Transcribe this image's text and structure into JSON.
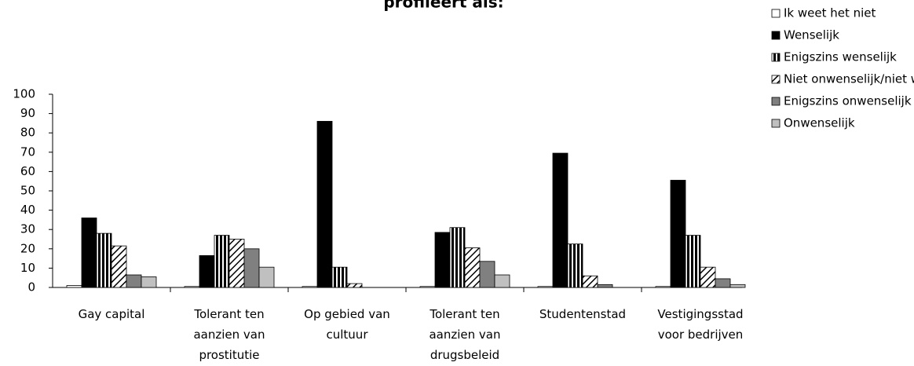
{
  "chart_data": {
    "type": "bar",
    "title": "profileert als:",
    "categories": [
      "Gay capital",
      "Tolerant ten aanzien van prostitutie",
      "Op gebied van cultuur",
      "Tolerant ten aanzien van drugsbeleid",
      "Studentenstad",
      "Vestigingsstad voor bedrijven"
    ],
    "series": [
      {
        "name": "Ik weet het niet",
        "color": "#ffffff",
        "pattern": "solid",
        "values": [
          1,
          0.5,
          0.5,
          0.5,
          0.5,
          0.5
        ]
      },
      {
        "name": "Wenselijk",
        "color": "#000000",
        "pattern": "solid",
        "values": [
          36,
          16.5,
          86,
          28.5,
          69.5,
          55.5
        ]
      },
      {
        "name": "Enigszins wenselijk",
        "color": "#000000",
        "pattern": "vertical-stripes",
        "values": [
          28,
          27,
          10.5,
          31,
          22.5,
          27
        ]
      },
      {
        "name": "Niet onwenselijk/niet wenselijk",
        "color": "#555555",
        "pattern": "diagonal-hatch",
        "values": [
          21.5,
          25,
          2,
          20.5,
          6,
          10.5
        ]
      },
      {
        "name": "Enigszins onwenselijk",
        "color": "#808080",
        "pattern": "solid",
        "values": [
          6.5,
          20,
          0,
          13.5,
          1.5,
          4.5
        ]
      },
      {
        "name": "Onwenselijk",
        "color": "#c0c0c0",
        "pattern": "solid",
        "values": [
          5.5,
          10.5,
          0,
          6.5,
          0,
          1.5
        ]
      }
    ],
    "ylim": [
      0,
      100
    ],
    "yticks": [
      0,
      10,
      20,
      30,
      40,
      50,
      60,
      70,
      80,
      90,
      100
    ],
    "legend": "top-right"
  }
}
